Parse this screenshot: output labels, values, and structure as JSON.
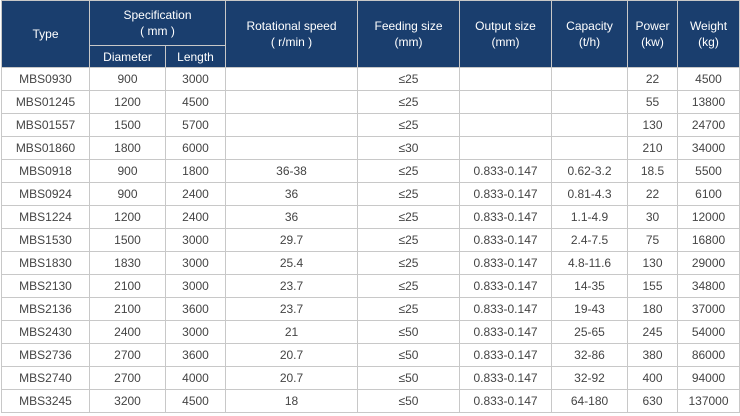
{
  "headers": {
    "type": "Type",
    "specification": "Specification",
    "specification_unit": "( mm )",
    "diameter": "Diameter",
    "length": "Length",
    "rotational_speed": "Rotational speed",
    "rotational_speed_unit": "( r/min )",
    "feeding_size": "Feeding size",
    "feeding_size_unit": "(mm)",
    "output_size": "Output size",
    "output_size_unit": "(mm)",
    "capacity": "Capacity",
    "capacity_unit": "(t/h)",
    "power": "Power",
    "power_unit": "(kw)",
    "weight": "Weight",
    "weight_unit": "(kg)"
  },
  "rows": [
    {
      "type": "MBS0930",
      "diameter": "900",
      "length": "3000",
      "speed": "",
      "feeding": "≤25",
      "output": "",
      "capacity": "",
      "power": "22",
      "weight": "4500"
    },
    {
      "type": "MBS01245",
      "diameter": "1200",
      "length": "4500",
      "speed": "",
      "feeding": "≤25",
      "output": "",
      "capacity": "",
      "power": "55",
      "weight": "13800"
    },
    {
      "type": "MBS01557",
      "diameter": "1500",
      "length": "5700",
      "speed": "",
      "feeding": "≤25",
      "output": "",
      "capacity": "",
      "power": "130",
      "weight": "24700"
    },
    {
      "type": "MBS01860",
      "diameter": "1800",
      "length": "6000",
      "speed": "",
      "feeding": "≤30",
      "output": "",
      "capacity": "",
      "power": "210",
      "weight": "34000"
    },
    {
      "type": "MBS0918",
      "diameter": "900",
      "length": "1800",
      "speed": "36-38",
      "feeding": "≤25",
      "output": "0.833-0.147",
      "capacity": "0.62-3.2",
      "power": "18.5",
      "weight": "5500"
    },
    {
      "type": "MBS0924",
      "diameter": "900",
      "length": "2400",
      "speed": "36",
      "feeding": "≤25",
      "output": "0.833-0.147",
      "capacity": "0.81-4.3",
      "power": "22",
      "weight": "6100"
    },
    {
      "type": "MBS1224",
      "diameter": "1200",
      "length": "2400",
      "speed": "36",
      "feeding": "≤25",
      "output": "0.833-0.147",
      "capacity": "1.1-4.9",
      "power": "30",
      "weight": "12000"
    },
    {
      "type": "MBS1530",
      "diameter": "1500",
      "length": "3000",
      "speed": "29.7",
      "feeding": "≤25",
      "output": "0.833-0.147",
      "capacity": "2.4-7.5",
      "power": "75",
      "weight": "16800"
    },
    {
      "type": "MBS1830",
      "diameter": "1830",
      "length": "3000",
      "speed": "25.4",
      "feeding": "≤25",
      "output": "0.833-0.147",
      "capacity": "4.8-11.6",
      "power": "130",
      "weight": "29000"
    },
    {
      "type": "MBS2130",
      "diameter": "2100",
      "length": "3000",
      "speed": "23.7",
      "feeding": "≤25",
      "output": "0.833-0.147",
      "capacity": "14-35",
      "power": "155",
      "weight": "34800"
    },
    {
      "type": "MBS2136",
      "diameter": "2100",
      "length": "3600",
      "speed": "23.7",
      "feeding": "≤25",
      "output": "0.833-0.147",
      "capacity": "19-43",
      "power": "180",
      "weight": "37000"
    },
    {
      "type": "MBS2430",
      "diameter": "2400",
      "length": "3000",
      "speed": "21",
      "feeding": "≤50",
      "output": "0.833-0.147",
      "capacity": "25-65",
      "power": "245",
      "weight": "54000"
    },
    {
      "type": "MBS2736",
      "diameter": "2700",
      "length": "3600",
      "speed": "20.7",
      "feeding": "≤50",
      "output": "0.833-0.147",
      "capacity": "32-86",
      "power": "380",
      "weight": "86000"
    },
    {
      "type": "MBS2740",
      "diameter": "2700",
      "length": "4000",
      "speed": "20.7",
      "feeding": "≤50",
      "output": "0.833-0.147",
      "capacity": "32-92",
      "power": "400",
      "weight": "94000"
    },
    {
      "type": "MBS3245",
      "diameter": "3200",
      "length": "4500",
      "speed": "18",
      "feeding": "≤50",
      "output": "0.833-0.147",
      "capacity": "64-180",
      "power": "630",
      "weight": "137000"
    }
  ]
}
